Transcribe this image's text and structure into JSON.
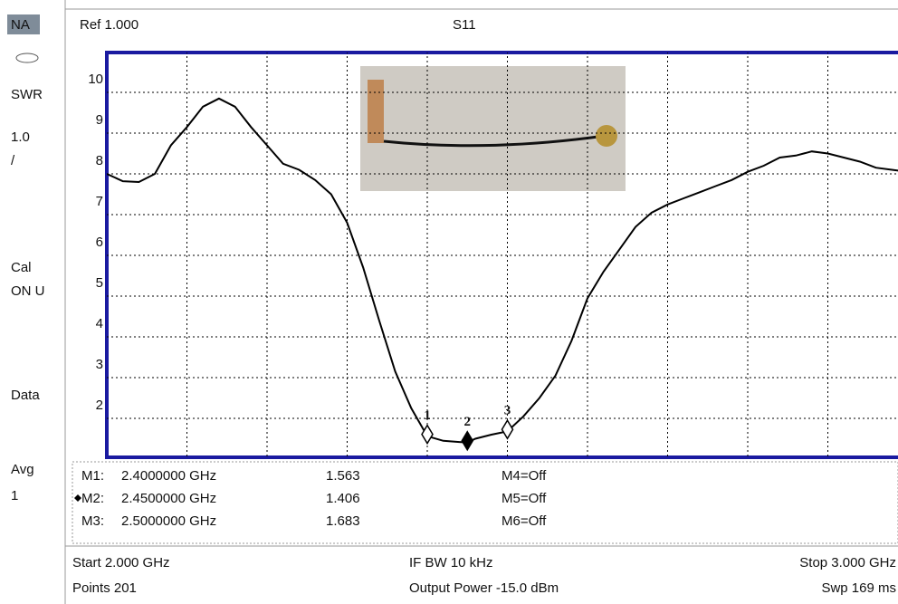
{
  "sidebar": [
    "NA",
    "SWR",
    "1.0",
    "/",
    "Cal",
    "ON U",
    "Data",
    "Avg",
    "1"
  ],
  "header": {
    "ref": "Ref 1.000",
    "trace": "S11"
  },
  "chart_data": {
    "type": "line",
    "x": [
      2.0,
      2.02,
      2.04,
      2.06,
      2.08,
      2.1,
      2.12,
      2.14,
      2.16,
      2.18,
      2.2,
      2.22,
      2.24,
      2.26,
      2.28,
      2.3,
      2.32,
      2.34,
      2.36,
      2.38,
      2.4,
      2.42,
      2.44,
      2.45,
      2.46,
      2.48,
      2.5,
      2.52,
      2.54,
      2.56,
      2.58,
      2.6,
      2.62,
      2.64,
      2.66,
      2.68,
      2.7,
      2.72,
      2.74,
      2.76,
      2.78,
      2.8,
      2.82,
      2.84,
      2.86,
      2.88,
      2.9,
      2.92,
      2.94,
      2.96,
      2.98,
      3.0
    ],
    "values": [
      8.0,
      7.82,
      7.8,
      8.0,
      8.7,
      9.15,
      9.65,
      9.85,
      9.65,
      9.15,
      8.7,
      8.25,
      8.1,
      7.85,
      7.5,
      6.8,
      5.7,
      4.4,
      3.15,
      2.25,
      1.563,
      1.45,
      1.42,
      1.406,
      1.5,
      1.6,
      1.683,
      2.05,
      2.5,
      3.05,
      3.9,
      4.95,
      5.6,
      6.15,
      6.7,
      7.05,
      7.25,
      7.4,
      7.55,
      7.7,
      7.85,
      8.05,
      8.2,
      8.4,
      8.45,
      8.55,
      8.5,
      8.4,
      8.3,
      8.15,
      8.1,
      8.05
    ],
    "color": "#000000",
    "xlim": [
      2.0,
      3.0
    ],
    "xgrid": [
      2.0,
      2.1,
      2.2,
      2.3,
      2.4,
      2.5,
      2.6,
      2.7,
      2.8,
      2.9
    ],
    "ylim": [
      1,
      11
    ],
    "yticks": [
      2,
      3,
      4,
      5,
      6,
      7,
      8,
      9,
      10
    ],
    "grid": true,
    "markers": [
      {
        "label": "1",
        "x": 2.4,
        "value": 1.563
      },
      {
        "label": "2",
        "x": 2.45,
        "value": 1.406
      },
      {
        "label": "3",
        "x": 2.5,
        "value": 1.683
      }
    ]
  },
  "marker_table": [
    [
      "M1:",
      "2.4000000 GHz",
      "1.563",
      "M4=Off"
    ],
    [
      "M2:",
      "2.4500000 GHz",
      "1.406",
      "M5=Off"
    ],
    [
      "M3:",
      "2.5000000 GHz",
      "1.683",
      "M6=Off"
    ]
  ],
  "footer": [
    [
      "Start 2.000 GHz",
      "IF BW 10 kHz",
      "Stop 3.000 GHz"
    ],
    [
      "Points 201",
      "Output Power -15.0 dBm",
      "Swp 169 ms"
    ]
  ]
}
